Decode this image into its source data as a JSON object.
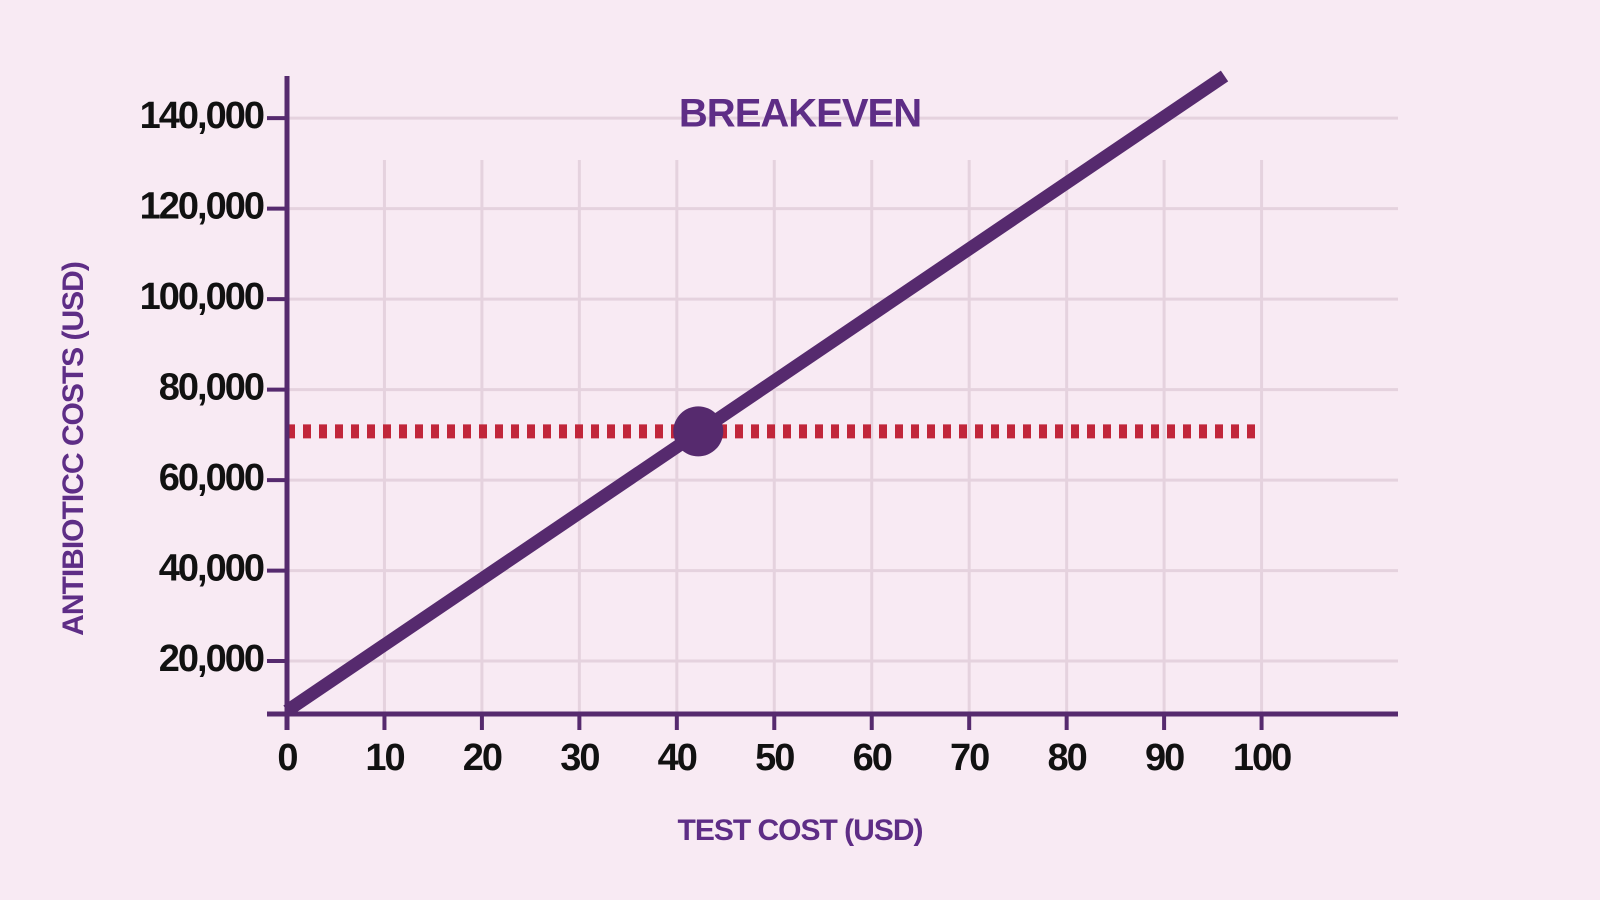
{
  "chart_data": {
    "type": "line",
    "annotation": {
      "text": "BREAKEVEN",
      "x": 42.2,
      "y": 70760,
      "color": "#562a6e"
    },
    "xlabel": "TEST COST (USD)",
    "ylabel": "ANTIBIOTICC COSTS (USD)",
    "xlim": [
      0,
      114
    ],
    "ylim": [
      8300,
      149300
    ],
    "xticks": [
      0,
      10,
      20,
      30,
      40,
      50,
      60,
      70,
      80,
      90,
      100
    ],
    "yticks": [
      {
        "value": 20000,
        "label": "20,000"
      },
      {
        "value": 40000,
        "label": "40,000"
      },
      {
        "value": 60000,
        "label": "60,000"
      },
      {
        "value": 80000,
        "label": "80,000"
      },
      {
        "value": 100000,
        "label": "100,000"
      },
      {
        "value": 120000,
        "label": "120,000"
      },
      {
        "value": 140000,
        "label": "140,000"
      }
    ],
    "grid": true,
    "series": [
      {
        "color": "#562a6e",
        "style": "solid",
        "x": [
          0,
          96.2
        ],
        "values": [
          9000,
          149300
        ]
      },
      {
        "color": "#c1263a",
        "style": "dotted",
        "x": [
          0,
          100
        ],
        "values": [
          70760,
          70760
        ]
      }
    ]
  }
}
